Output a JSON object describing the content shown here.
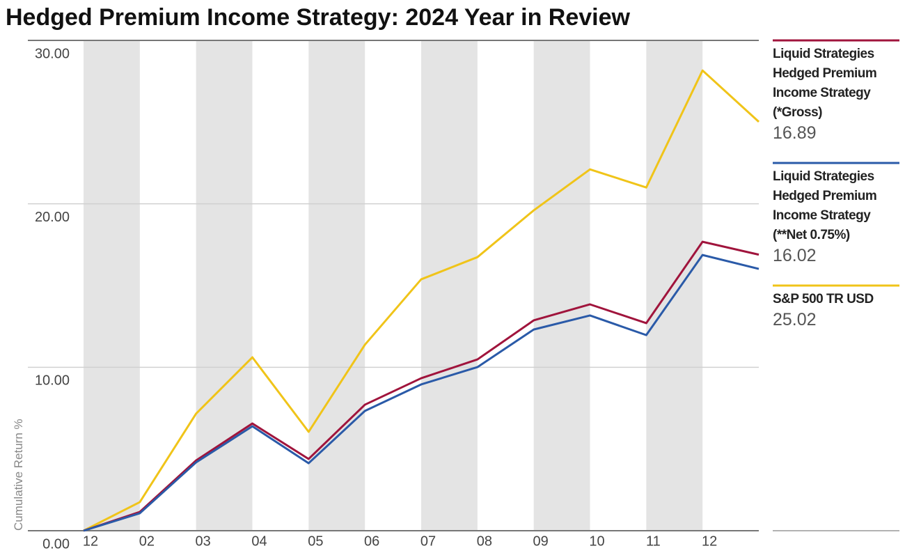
{
  "chart_data": {
    "type": "line",
    "title": "Hedged Premium Income Strategy: 2024 Year in Review",
    "y_label": "Cumulative Return %",
    "categories": [
      "12",
      "02",
      "03",
      "04",
      "05",
      "06",
      "07",
      "08",
      "09",
      "10",
      "11",
      "12",
      null
    ],
    "series": [
      {
        "name": "Liquid Strategies Hedged Premium Income Strategy (*Gross)",
        "color": "#a0143c",
        "values": [
          0,
          1.15,
          4.3,
          6.56,
          4.39,
          7.71,
          9.33,
          10.48,
          12.87,
          13.85,
          12.7,
          17.68,
          16.89
        ]
      },
      {
        "name": "Liquid Strategies Hedged Premium Income Strategy (**Net 0.75%)",
        "color": "#2a5aa8",
        "values": [
          0,
          1.07,
          4.18,
          6.39,
          4.13,
          7.33,
          8.95,
          10.01,
          12.31,
          13.17,
          11.97,
          16.87,
          16.02
        ]
      },
      {
        "name": "S&P 500 TR USD",
        "color": "#f0c419",
        "values": [
          0,
          1.75,
          7.16,
          10.61,
          6.05,
          11.38,
          15.38,
          16.74,
          19.6,
          22.11,
          21.0,
          28.16,
          25.02
        ]
      }
    ],
    "ylim": [
      0,
      30
    ],
    "yticks": [
      {
        "value": 0,
        "label": "0.00"
      },
      {
        "value": 10,
        "label": "10.00"
      },
      {
        "value": 20,
        "label": "20.00"
      },
      {
        "value": 30,
        "label": "30.00"
      }
    ],
    "grid": true
  }
}
